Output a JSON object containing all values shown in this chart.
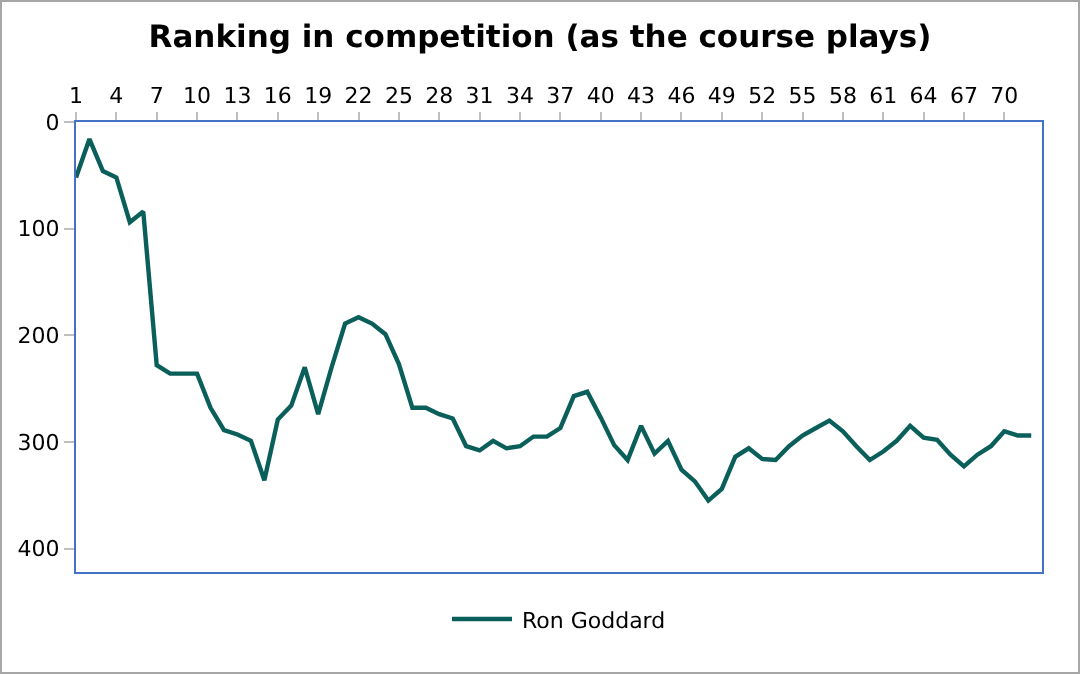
{
  "chart_data": {
    "type": "line",
    "title": "Ranking in competition (as the course plays)",
    "x": [
      1,
      2,
      3,
      4,
      5,
      6,
      7,
      8,
      9,
      10,
      11,
      12,
      13,
      14,
      15,
      16,
      17,
      18,
      19,
      20,
      21,
      22,
      23,
      24,
      25,
      26,
      27,
      28,
      29,
      30,
      31,
      32,
      33,
      34,
      35,
      36,
      37,
      38,
      39,
      40,
      41,
      42,
      43,
      44,
      45,
      46,
      47,
      48,
      49,
      50,
      51,
      52,
      53,
      54,
      55,
      56,
      57,
      58,
      59,
      60,
      61,
      62,
      63,
      64,
      65,
      66,
      67,
      68,
      69,
      70,
      71,
      72
    ],
    "series": [
      {
        "name": "Ron Goddard",
        "color": "#0b5f5a",
        "values": [
          52,
          16,
          46,
          52,
          94,
          84,
          228,
          236,
          236,
          236,
          268,
          289,
          293,
          299,
          336,
          279,
          266,
          230,
          274,
          230,
          189,
          183,
          189,
          199,
          227,
          268,
          268,
          274,
          278,
          304,
          308,
          299,
          306,
          304,
          295,
          295,
          287,
          257,
          253,
          277,
          303,
          317,
          285,
          311,
          299,
          326,
          337,
          355,
          344,
          314,
          306,
          316,
          317,
          304,
          294,
          287,
          280,
          290,
          304,
          317,
          309,
          299,
          285,
          296,
          298,
          312,
          323,
          312,
          304,
          290,
          294,
          294
        ]
      }
    ],
    "xlim": [
      1,
      72.8
    ],
    "xticks": [
      1,
      4,
      7,
      10,
      13,
      16,
      19,
      22,
      25,
      28,
      31,
      34,
      37,
      40,
      43,
      46,
      49,
      52,
      55,
      58,
      61,
      64,
      67,
      70
    ],
    "ylim": [
      422,
      0
    ],
    "yticks": [
      0,
      100,
      200,
      300,
      400
    ],
    "grid": false,
    "legend": "bottom",
    "marker": "none",
    "line_style": "solid"
  }
}
